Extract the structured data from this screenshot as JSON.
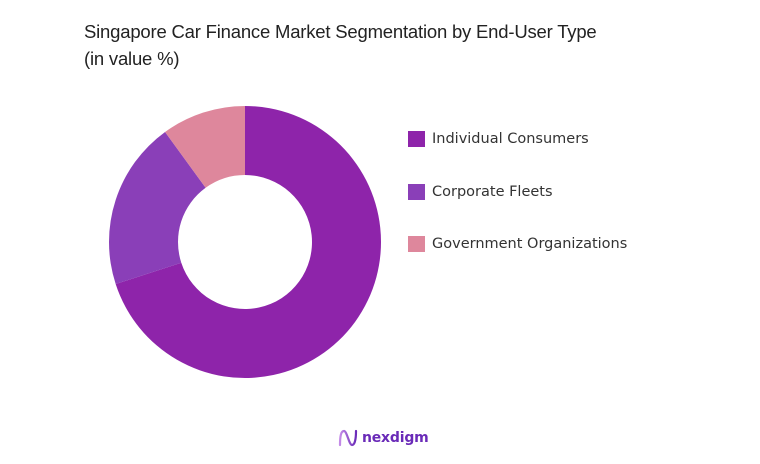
{
  "chart": {
    "title_line1": "Singapore Car Finance Market Segmentation by End-User Type",
    "title_line2": "(in value %)"
  },
  "legend": {
    "items": [
      {
        "label": "Individual Consumers",
        "color": "#8E24AA"
      },
      {
        "label": "Corporate Fleets",
        "color": "#8A3FB8"
      },
      {
        "label": "Government Organizations",
        "color": "#DE879C"
      }
    ]
  },
  "brand": {
    "name": "nexdigm"
  },
  "chart_data": {
    "type": "pie",
    "variant": "donut",
    "title": "Singapore Car Finance Market Segmentation by End-User Type (in value %)",
    "categories": [
      "Individual Consumers",
      "Corporate Fleets",
      "Government Organizations"
    ],
    "values": [
      70,
      20,
      10
    ],
    "colors": [
      "#8E24AA",
      "#8A3FB8",
      "#DE879C"
    ],
    "legend_position": "right",
    "start_angle": "12 o'clock, clockwise"
  }
}
